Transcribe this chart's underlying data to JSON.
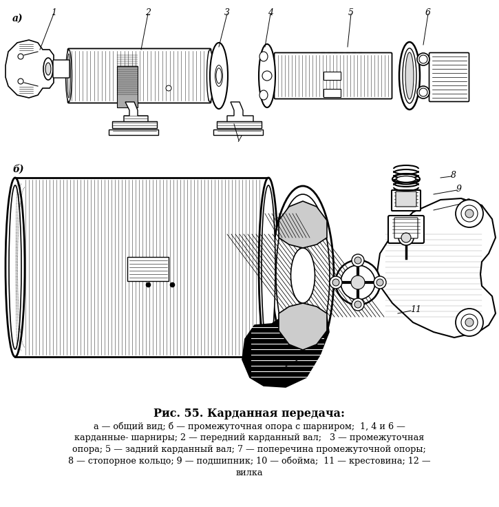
{
  "title": "Рис. 55. Карданная передача:",
  "caption_line1": "а — общий вид; б — промежуточная опора с шарниром;  1, 4 и 6 —",
  "caption_line2": "карданные- шарниры; 2 — передний карданный вал;   3 — промежуточная",
  "caption_line3": "опора; 5 — задний карданный вал; 7 — поперечина промежуточной опоры;",
  "caption_line4": "8 — стопорное кольцо; 9 — подшипник; 10 — обойма;  11 — крестовина; 12 —",
  "caption_line5": "вилка",
  "label_a": "а)",
  "label_b": "б)",
  "bg_color": "#ffffff",
  "text_color": "#000000",
  "fig_width": 7.25,
  "fig_height": 7.36,
  "dpi": 100
}
